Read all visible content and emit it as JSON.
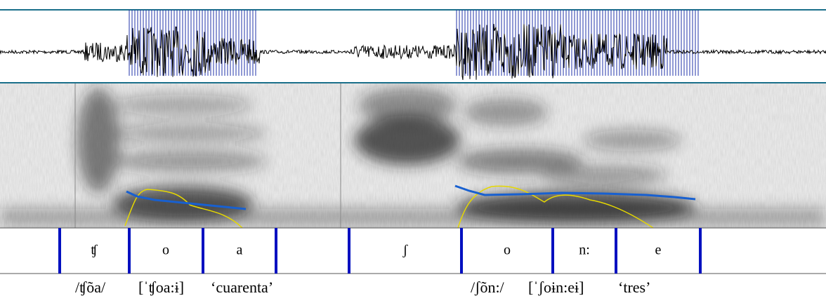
{
  "segments": [
    "ʧ",
    "o",
    "a",
    "ʃ",
    "o",
    "n:",
    "e"
  ],
  "captions": [
    "/ʧõa/",
    "[ˈʧoa:ɨ]",
    "‘cuarenta’",
    "/ʃõn:/",
    "[ˈʃoɨn:eɨ]",
    "‘tres’"
  ]
}
